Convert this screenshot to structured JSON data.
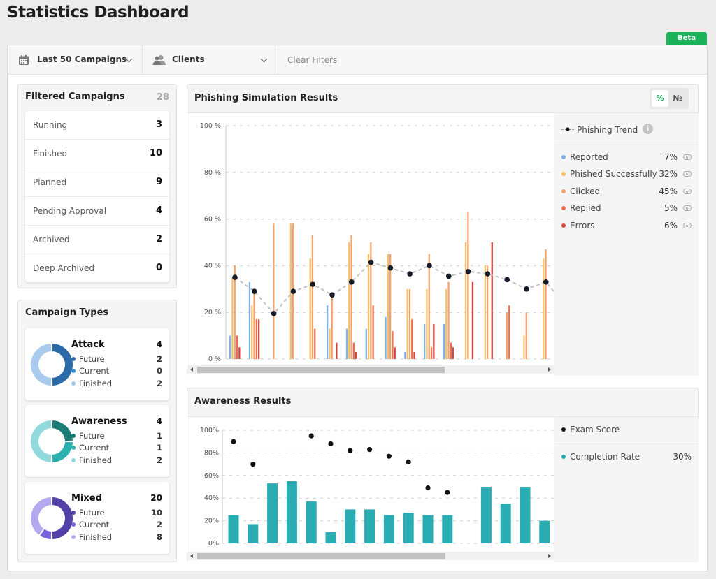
{
  "page_title": "Statistics Dashboard",
  "beta_badge": "Beta",
  "filters": {
    "campaigns_label": "Last 50 Campaigns",
    "clients_label": "Clients",
    "clear_label": "Clear Filters"
  },
  "filtered_campaigns": {
    "title": "Filtered Campaigns",
    "total": "28",
    "rows": [
      {
        "label": "Running",
        "value": "3"
      },
      {
        "label": "Finished",
        "value": "10"
      },
      {
        "label": "Planned",
        "value": "9"
      },
      {
        "label": "Pending Approval",
        "value": "4"
      },
      {
        "label": "Archived",
        "value": "2"
      },
      {
        "label": "Deep Archived",
        "value": "0"
      }
    ]
  },
  "campaign_types": {
    "title": "Campaign Types",
    "types": [
      {
        "name": "Attack",
        "total": "4",
        "sub": [
          {
            "label": "Future",
            "value": "2"
          },
          {
            "label": "Current",
            "value": "0"
          },
          {
            "label": "Finished",
            "value": "2"
          }
        ],
        "colors": [
          "#2c6aa8",
          "#3a8fd0",
          "#a9cbee"
        ]
      },
      {
        "name": "Awareness",
        "total": "4",
        "sub": [
          {
            "label": "Future",
            "value": "1"
          },
          {
            "label": "Current",
            "value": "1"
          },
          {
            "label": "Finished",
            "value": "2"
          }
        ],
        "colors": [
          "#1a7c74",
          "#2bb2b0",
          "#92d9dd"
        ]
      },
      {
        "name": "Mixed",
        "total": "20",
        "sub": [
          {
            "label": "Future",
            "value": "10"
          },
          {
            "label": "Current",
            "value": "2"
          },
          {
            "label": "Finished",
            "value": "8"
          }
        ],
        "colors": [
          "#5240a8",
          "#7a62dc",
          "#b4a9ee"
        ]
      }
    ]
  },
  "phishing": {
    "title": "Phishing Simulation Results",
    "toggle": {
      "percent": "%",
      "number": "№"
    },
    "trend_label": "Phishing Trend",
    "legend": [
      {
        "label": "Reported",
        "value": "7%",
        "color": "#7fb2e5"
      },
      {
        "label": "Phished Successfully",
        "value": "32%",
        "color": "#f4c06a"
      },
      {
        "label": "Clicked",
        "value": "45%",
        "color": "#f5a36b"
      },
      {
        "label": "Replied",
        "value": "5%",
        "color": "#f06e4e"
      },
      {
        "label": "Errors",
        "value": "6%",
        "color": "#d9453d"
      }
    ]
  },
  "awareness": {
    "title": "Awareness Results",
    "legend": [
      {
        "label": "Exam Score",
        "value": "",
        "color": "#111111"
      },
      {
        "label": "Completion Rate",
        "value": "30%",
        "color": "#2aacb3"
      }
    ]
  },
  "chart_data": [
    {
      "type": "bar",
      "title": "Phishing Simulation Results",
      "ylim": [
        0,
        100
      ],
      "yticks": [
        "0 %",
        "20 %",
        "40 %",
        "60 %",
        "80 %",
        "100 %"
      ],
      "series": [
        {
          "name": "Reported",
          "color": "#7fb2e5",
          "values": [
            10,
            33,
            0,
            0,
            0,
            23,
            13,
            13,
            18,
            3,
            15,
            15,
            0,
            0,
            0,
            0,
            0
          ]
        },
        {
          "name": "Phished Successfully",
          "color": "#f4c06a",
          "values": [
            35,
            23,
            0,
            58,
            43,
            13,
            50,
            45,
            45,
            30,
            30,
            30,
            50,
            40,
            0,
            10,
            43
          ]
        },
        {
          "name": "Clicked",
          "color": "#f5a36b",
          "values": [
            40,
            28,
            58,
            58,
            53,
            27,
            53,
            50,
            45,
            30,
            45,
            33,
            63,
            40,
            20,
            20,
            47
          ]
        },
        {
          "name": "Replied",
          "color": "#f06e4e",
          "values": [
            10,
            17,
            0,
            0,
            13,
            0,
            7,
            23,
            12,
            17,
            5,
            7,
            0,
            0,
            23,
            0,
            0
          ]
        },
        {
          "name": "Errors",
          "color": "#d9453d",
          "values": [
            5,
            17,
            0,
            0,
            0,
            7,
            3,
            0,
            5,
            3,
            15,
            5,
            33,
            50,
            0,
            0,
            0
          ]
        }
      ],
      "trend": {
        "name": "Phishing Trend",
        "values": [
          35,
          29,
          19.5,
          29,
          32,
          27.5,
          33,
          41.5,
          39,
          36.5,
          40,
          35.5,
          37.5,
          36.5,
          34,
          30,
          33
        ]
      }
    },
    {
      "type": "bar",
      "title": "Awareness Results",
      "ylim": [
        0,
        100
      ],
      "yticks": [
        "0%",
        "20%",
        "40%",
        "60%",
        "80%",
        "100%"
      ],
      "series": [
        {
          "name": "Completion Rate",
          "color": "#2aacb3",
          "values": [
            25,
            17,
            53,
            55,
            37,
            10,
            30,
            30,
            25,
            27,
            25,
            25,
            0,
            50,
            35,
            50,
            20
          ]
        }
      ],
      "scatter": {
        "name": "Exam Score",
        "values": [
          90,
          70,
          null,
          null,
          95,
          88,
          82,
          83,
          77,
          72,
          49,
          45,
          null,
          null,
          null,
          null,
          null
        ]
      }
    }
  ]
}
